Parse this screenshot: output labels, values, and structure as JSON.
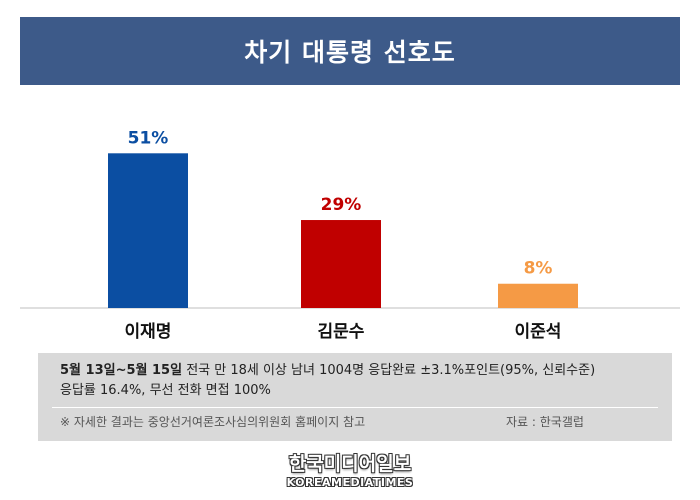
{
  "title": "차기 대통령 선호도",
  "chart_data": {
    "type": "bar",
    "title": "차기 대통령 선호도",
    "categories": [
      "이재명",
      "김문수",
      "이준석"
    ],
    "values": [
      51,
      29,
      8
    ],
    "value_labels": [
      "51%",
      "29%",
      "8%"
    ],
    "colors": [
      "#0b4ea2",
      "#c00000",
      "#f59a45"
    ],
    "ylim": [
      0,
      60
    ],
    "grid": false,
    "legend": "none"
  },
  "survey": {
    "period": "5월 13일~5월 15일",
    "details": " 전국 만 18세 이상 남녀 1004명 응답완료 ±3.1%포인트(95%, 신뢰수준)",
    "details2": "응답률 16.4%, 무선 전화 면접 100%",
    "note": "※ 자세한 결과는 중앙선거여론조사심의위원회 홈페이지 참고",
    "source": "자료 : 한국갤럽"
  },
  "logo": {
    "korean": "한국미디어일보",
    "english": "KOREAMEDIATIMES"
  }
}
